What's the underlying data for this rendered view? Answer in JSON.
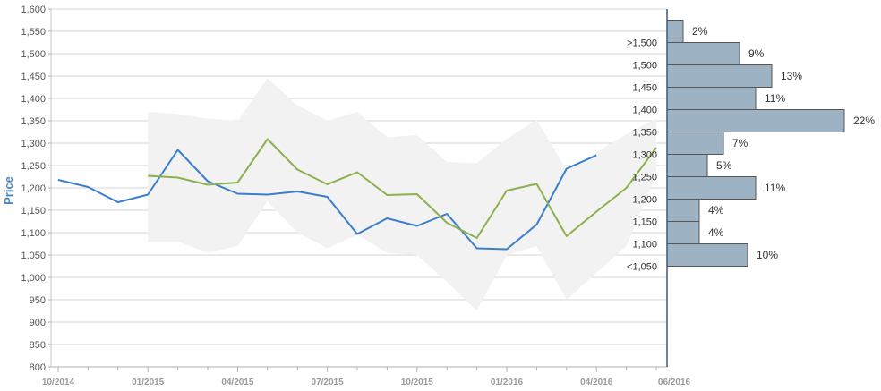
{
  "chart_data": {
    "type": "line",
    "ylabel": "Price",
    "ylim": [
      800,
      1600
    ],
    "y_ticks": [
      800,
      850,
      900,
      950,
      1000,
      1050,
      1100,
      1150,
      1200,
      1250,
      1300,
      1350,
      1400,
      1450,
      1500,
      1550,
      1600
    ],
    "y_tick_labels": [
      "800",
      "850",
      "900",
      "950",
      "1,000",
      "1,050",
      "1,100",
      "1,150",
      "1,200",
      "1,250",
      "1,300",
      "1,350",
      "1,400",
      "1,450",
      "1,500",
      "1,550",
      "1,600"
    ],
    "x_ticks": [
      "10/2014",
      "01/2015",
      "04/2015",
      "07/2015",
      "10/2015",
      "01/2016",
      "04/2016",
      "06/2016"
    ],
    "grid": true,
    "series": [
      {
        "color": "#3b7fcc",
        "x": [
          "10/2014",
          "11/2014",
          "12/2014",
          "01/2015",
          "02/2015",
          "03/2015",
          "04/2015",
          "05/2015",
          "06/2015",
          "07/2015",
          "08/2015",
          "09/2015",
          "10/2015",
          "11/2015",
          "12/2015",
          "01/2016",
          "02/2016",
          "03/2016",
          "04/2016"
        ],
        "values": [
          1218,
          1202,
          1168,
          1185,
          1285,
          1215,
          1187,
          1185,
          1192,
          1180,
          1097,
          1132,
          1115,
          1142,
          1065,
          1063,
          1118,
          1243,
          1273
        ]
      },
      {
        "color": "#8db04e",
        "x": [
          "01/2015",
          "02/2015",
          "03/2015",
          "04/2015",
          "05/2015",
          "06/2015",
          "07/2015",
          "08/2015",
          "09/2015",
          "10/2015",
          "11/2015",
          "12/2015",
          "01/2016",
          "02/2016",
          "03/2016",
          "04/2016",
          "05/2016",
          "06/2016"
        ],
        "values": [
          1227,
          1223,
          1207,
          1212,
          1309,
          1241,
          1208,
          1235,
          1184,
          1186,
          1122,
          1088,
          1194,
          1209,
          1092,
          1147,
          1200,
          1290
        ]
      }
    ],
    "band": {
      "color": "#f2f2f2",
      "x": [
        "01/2015",
        "02/2015",
        "03/2015",
        "04/2015",
        "05/2015",
        "06/2015",
        "07/2015",
        "08/2015",
        "09/2015",
        "10/2015",
        "11/2015",
        "12/2015",
        "01/2016",
        "02/2016",
        "03/2016",
        "04/2016",
        "05/2016",
        "06/2016"
      ],
      "upper": [
        1370,
        1365,
        1355,
        1350,
        1445,
        1385,
        1350,
        1370,
        1313,
        1318,
        1258,
        1255,
        1310,
        1352,
        1240,
        1280,
        1320,
        1355
      ],
      "lower": [
        1080,
        1080,
        1055,
        1070,
        1170,
        1100,
        1065,
        1095,
        1055,
        1050,
        990,
        925,
        1050,
        1070,
        950,
        1010,
        1070,
        1230
      ]
    },
    "histogram": {
      "color": "#9db3c3",
      "bins": [
        {
          "label": ">1,500",
          "pct": "2%",
          "value": 2
        },
        {
          "label": "1,500",
          "pct": "9%",
          "value": 9
        },
        {
          "label": "1,450",
          "pct": "13%",
          "value": 13
        },
        {
          "label": "1,400",
          "pct": "11%",
          "value": 11
        },
        {
          "label": "1,350",
          "pct": "22%",
          "value": 22
        },
        {
          "label": "1,300",
          "pct": "7%",
          "value": 7
        },
        {
          "label": "1,250",
          "pct": "5%",
          "value": 5
        },
        {
          "label": "1,200",
          "pct": "11%",
          "value": 11
        },
        {
          "label": "1,150",
          "pct": "4%",
          "value": 4
        },
        {
          "label": "1,100",
          "pct": "4%",
          "value": 4
        },
        {
          "label": "<1,050",
          "pct": "10%",
          "value": 10
        }
      ]
    }
  }
}
